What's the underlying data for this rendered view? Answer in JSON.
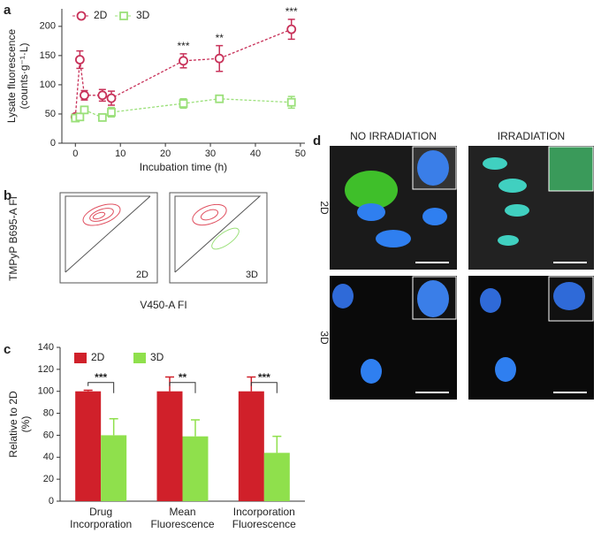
{
  "panel_labels": [
    "a",
    "b",
    "c",
    "d"
  ],
  "chart_data": [
    {
      "type": "line",
      "x_label": "Incubation time (h)",
      "y_label": [
        "Lysate fluorescence",
        "(counts·g⁻¹·L)"
      ],
      "x": [
        0,
        1,
        2,
        6,
        8,
        24,
        32,
        48
      ],
      "xlim": [
        -3,
        51
      ],
      "xticks": [
        0,
        10,
        20,
        30,
        40,
        50
      ],
      "ylim": [
        0,
        230
      ],
      "yticks": [
        0,
        50,
        100,
        150,
        200
      ],
      "series": [
        {
          "name": "2D",
          "color": "#c8325a",
          "marker": "circle",
          "values": [
            45,
            143,
            82,
            82,
            77,
            141,
            145,
            195
          ],
          "errors": [
            5,
            15,
            8,
            10,
            12,
            12,
            22,
            17
          ]
        },
        {
          "name": "3D",
          "color": "#9be07a",
          "marker": "square",
          "values": [
            43,
            45,
            57,
            44,
            53,
            68,
            76,
            70
          ],
          "errors": [
            3,
            3,
            3,
            3,
            8,
            8,
            3,
            10
          ]
        }
      ],
      "annotations": [
        {
          "x": 24,
          "label": "***"
        },
        {
          "x": 32,
          "label": "**"
        },
        {
          "x": 48,
          "label": "***"
        }
      ]
    },
    {
      "type": "bar",
      "y_label": [
        "Relative to 2D",
        "(%)"
      ],
      "categories": [
        "Drug Incorporation",
        "Mean Fluorescence",
        "Incorporation Fluorescence"
      ],
      "ylim": [
        0,
        140
      ],
      "yticks": [
        0,
        20,
        40,
        60,
        80,
        100,
        120,
        140
      ],
      "series": [
        {
          "name": "2D",
          "color": "#d0202a",
          "values": [
            100,
            100,
            100
          ],
          "errors": [
            1,
            13,
            13
          ]
        },
        {
          "name": "3D",
          "color": "#8fe04c",
          "values": [
            60,
            59,
            44
          ],
          "errors": [
            15,
            15,
            15
          ]
        }
      ],
      "significance": [
        "***",
        "**",
        "***"
      ]
    }
  ],
  "panel_b": {
    "y_label": "TMPyP B695-A FI",
    "x_label": "V450-A FI",
    "plots": [
      "2D",
      "3D"
    ]
  },
  "panel_d": {
    "columns": [
      "NO IRRADIATION",
      "IRRADIATION"
    ],
    "rows": [
      "2D",
      "3D"
    ]
  }
}
